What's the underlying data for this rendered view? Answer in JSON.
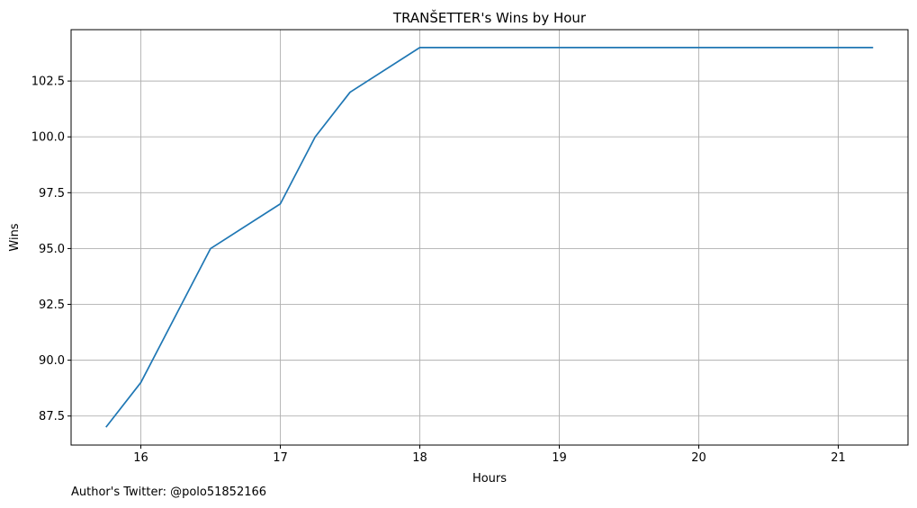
{
  "chart_data": {
    "type": "line",
    "title": "TRANŠETTER's Wins by Hour",
    "xlabel": "Hours",
    "ylabel": "Wins",
    "xlim": [
      15.5,
      21.5
    ],
    "ylim": [
      86.2,
      104.8
    ],
    "xticks": [
      16,
      17,
      18,
      19,
      20,
      21
    ],
    "yticks": [
      87.5,
      90.0,
      92.5,
      95.0,
      97.5,
      100.0,
      102.5
    ],
    "ytick_labels": [
      "87.5",
      "90.0",
      "92.5",
      "95.0",
      "97.5",
      "100.0",
      "102.5"
    ],
    "grid": true,
    "line_color": "#1f77b4",
    "grid_color": "#b0b0b0",
    "series": [
      {
        "x": [
          15.75,
          16.0,
          16.5,
          17.0,
          17.25,
          17.5,
          18.0,
          18.25,
          18.5,
          18.75,
          19.0,
          19.25,
          19.5,
          19.75,
          20.0,
          20.25,
          20.5,
          20.75,
          21.0,
          21.25
        ],
        "values": [
          87,
          89,
          95,
          97,
          100,
          102,
          104,
          104,
          104,
          104,
          104,
          104,
          104,
          104,
          104,
          104,
          104,
          104,
          104,
          104
        ]
      }
    ]
  },
  "footnote": "Author's Twitter: @polo51852166"
}
